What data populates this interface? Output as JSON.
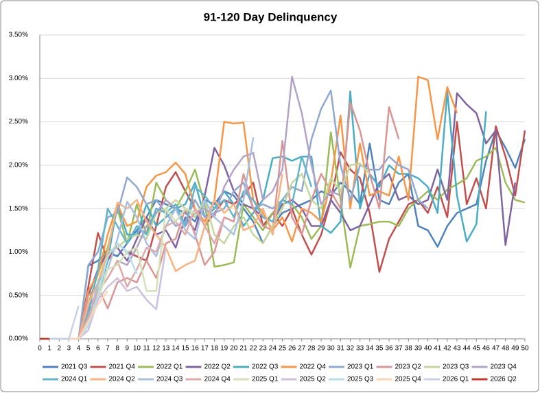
{
  "chart_data": {
    "type": "line",
    "title": "91-120 Day Delinquency",
    "x": [
      0,
      1,
      2,
      3,
      4,
      5,
      6,
      7,
      8,
      9,
      10,
      11,
      12,
      13,
      14,
      15,
      16,
      17,
      18,
      19,
      20,
      21,
      22,
      23,
      24,
      25,
      26,
      27,
      28,
      29,
      30,
      31,
      32,
      33,
      34,
      35,
      36,
      37,
      38,
      39,
      40,
      41,
      42,
      43,
      44,
      45,
      46,
      47,
      48,
      49,
      50
    ],
    "xlim": [
      0,
      50
    ],
    "xticks": [
      0,
      1,
      2,
      3,
      4,
      5,
      6,
      7,
      8,
      9,
      10,
      11,
      12,
      13,
      14,
      15,
      16,
      17,
      18,
      19,
      20,
      21,
      22,
      23,
      24,
      25,
      26,
      27,
      28,
      29,
      30,
      31,
      32,
      33,
      34,
      35,
      36,
      37,
      38,
      39,
      40,
      41,
      42,
      43,
      44,
      45,
      46,
      47,
      48,
      49,
      50
    ],
    "ylim": [
      0,
      3.5
    ],
    "yticks": [
      {
        "value": 0,
        "label": "0.00%"
      },
      {
        "value": 0.5,
        "label": "0.50%"
      },
      {
        "value": 1,
        "label": "1.00%"
      },
      {
        "value": 1.5,
        "label": "1.50%"
      },
      {
        "value": 2,
        "label": "2.00%"
      },
      {
        "value": 2.5,
        "label": "2.50%"
      },
      {
        "value": 3,
        "label": "3.00%"
      },
      {
        "value": 3.5,
        "label": "3.50%"
      }
    ],
    "grid": true,
    "legend": "bottom",
    "series": [
      {
        "name": "2021 Q3",
        "color": "#4f81bd",
        "values": [
          0,
          0,
          0,
          0,
          0,
          0.84,
          0.9,
          1.0,
          0.95,
          1.1,
          1.25,
          1.4,
          1.6,
          1.55,
          1.5,
          1.45,
          1.35,
          1.6,
          1.55,
          1.7,
          1.65,
          1.5,
          1.35,
          1.1,
          1.3,
          1.45,
          1.5,
          1.55,
          1.6,
          1.7,
          1.65,
          1.8,
          1.7,
          1.55,
          2.25,
          1.6,
          1.55,
          1.8,
          1.9,
          1.3,
          1.25,
          1.06,
          1.3,
          1.45,
          1.5,
          1.55,
          2.05,
          2.4,
          2.2,
          1.97,
          2.3
        ]
      },
      {
        "name": "2021 Q4",
        "color": "#c0504d",
        "values": [
          0,
          0,
          0,
          0,
          0,
          0.6,
          1.22,
          0.9,
          1.1,
          1.0,
          0.95,
          0.9,
          1.3,
          1.75,
          1.92,
          1.7,
          1.5,
          1.3,
          1.45,
          1.6,
          1.55,
          1.65,
          1.8,
          1.3,
          1.45,
          1.3,
          1.5,
          1.2,
          0.97,
          1.2,
          1.6,
          2.15,
          1.95,
          1.85,
          1.45,
          0.77,
          1.15,
          1.35,
          1.55,
          1.6,
          1.45,
          1.75,
          1.4,
          2.5,
          1.55,
          1.85,
          1.5,
          2.45,
          2.1,
          1.65,
          2.4
        ]
      },
      {
        "name": "2022 Q1",
        "color": "#9bbb59",
        "values": [
          0,
          0,
          0,
          0,
          0,
          0.4,
          0.75,
          1.05,
          1.5,
          1.1,
          1.55,
          1.2,
          1.8,
          1.6,
          1.5,
          1.7,
          1.95,
          1.55,
          0.83,
          0.85,
          0.88,
          1.55,
          1.4,
          1.25,
          1.45,
          1.6,
          1.55,
          1.4,
          1.15,
          1.3,
          2.38,
          1.6,
          0.82,
          1.3,
          1.32,
          1.35,
          1.35,
          1.3,
          1.5,
          1.6,
          1.7,
          1.6,
          1.72,
          1.78,
          1.85,
          2.05,
          2.1,
          2.2,
          1.8,
          1.6,
          1.57
        ]
      },
      {
        "name": "2022 Q2",
        "color": "#8064a2",
        "values": [
          0,
          0,
          0,
          0,
          0,
          0.5,
          0.8,
          1.0,
          1.05,
          0.9,
          1.15,
          1.4,
          1.2,
          1.25,
          1.05,
          1.4,
          1.25,
          1.65,
          2.2,
          2.0,
          1.7,
          1.55,
          1.5,
          1.4,
          1.35,
          1.55,
          1.6,
          1.5,
          1.3,
          1.3,
          1.6,
          1.45,
          1.25,
          1.3,
          1.55,
          1.8,
          1.9,
          1.6,
          1.65,
          1.55,
          1.6,
          1.95,
          1.6,
          2.83,
          2.7,
          2.6,
          2.25,
          2.4,
          1.08,
          1.8,
          null
        ]
      },
      {
        "name": "2022 Q3",
        "color": "#4bacc6",
        "values": [
          0,
          0,
          0,
          0,
          0,
          0.3,
          0.5,
          0.9,
          1.55,
          1.2,
          1.2,
          1.55,
          1.3,
          1.4,
          1.5,
          1.55,
          1.8,
          1.4,
          1.5,
          1.7,
          1.55,
          1.3,
          1.45,
          1.6,
          2.08,
          2.1,
          2.05,
          2.1,
          2.1,
          1.3,
          1.22,
          1.35,
          2.85,
          1.5,
          1.9,
          1.75,
          2.0,
          1.9,
          1.9,
          1.85,
          1.75,
          1.45,
          2.85,
          1.65,
          1.12,
          1.32,
          2.62,
          null,
          null,
          null,
          null
        ]
      },
      {
        "name": "2022 Q4",
        "color": "#f79646",
        "values": [
          0,
          0,
          0,
          0,
          0,
          0.55,
          0.75,
          1.2,
          1.55,
          1.3,
          1.35,
          1.75,
          1.88,
          1.92,
          2.03,
          1.9,
          1.5,
          1.35,
          1.6,
          2.5,
          2.48,
          2.49,
          1.6,
          1.45,
          1.25,
          1.4,
          1.12,
          1.5,
          1.45,
          1.35,
          1.8,
          2.57,
          1.5,
          2.25,
          1.65,
          1.7,
          1.65,
          2.1,
          1.6,
          3.02,
          2.98,
          2.3,
          2.9,
          2.6,
          null,
          null,
          null,
          null,
          null,
          null,
          null
        ]
      },
      {
        "name": "2023 Q1",
        "color": "#8fa8d2",
        "values": [
          0,
          0,
          0,
          0,
          0,
          0.85,
          1.0,
          1.4,
          1.45,
          1.86,
          1.75,
          1.55,
          1.6,
          1.45,
          1.3,
          1.35,
          1.6,
          1.4,
          1.45,
          1.5,
          1.7,
          1.8,
          1.5,
          1.55,
          1.5,
          1.6,
          1.75,
          1.7,
          2.3,
          2.65,
          2.86,
          2.0,
          1.6,
          2.0,
          1.95,
          1.95,
          2.1,
          2.0,
          1.95,
          1.6,
          1.5,
          null,
          null,
          null,
          null,
          null,
          null,
          null,
          null,
          null,
          null
        ]
      },
      {
        "name": "2023 Q2",
        "color": "#d99694",
        "values": [
          0,
          0,
          0,
          0,
          0,
          0.5,
          0.6,
          0.35,
          0.65,
          0.7,
          0.65,
          0.9,
          0.7,
          1.1,
          1.15,
          1.5,
          1.2,
          0.85,
          1.0,
          1.4,
          1.35,
          1.9,
          1.5,
          1.3,
          1.25,
          2.28,
          1.4,
          1.2,
          1.6,
          1.9,
          1.7,
          1.5,
          2.72,
          2.4,
          1.9,
          1.5,
          2.67,
          2.3,
          null,
          null,
          null,
          null,
          null,
          null,
          null,
          null,
          null,
          null,
          null,
          null,
          null
        ]
      },
      {
        "name": "2023 Q3",
        "color": "#c3d69b",
        "values": [
          0,
          0,
          0,
          0,
          0,
          0.2,
          0.6,
          1.0,
          1.05,
          1.15,
          1.2,
          1.15,
          1.45,
          1.5,
          1.6,
          1.5,
          1.4,
          1.6,
          1.2,
          1.1,
          1.3,
          1.4,
          1.2,
          1.1,
          1.3,
          1.5,
          1.8,
          1.9,
          1.6,
          1.5,
          1.85,
          1.7,
          2.0,
          2.02,
          1.9,
          null,
          null,
          null,
          null,
          null,
          null,
          null,
          null,
          null,
          null,
          null,
          null,
          null,
          null,
          null,
          null
        ]
      },
      {
        "name": "2023 Q4",
        "color": "#b3a2c7",
        "values": [
          0,
          0,
          0,
          0,
          0,
          0.35,
          0.55,
          0.7,
          0.9,
          0.85,
          1.05,
          1.3,
          1.45,
          1.6,
          1.5,
          1.3,
          1.45,
          1.5,
          1.4,
          1.75,
          1.95,
          2.1,
          2.14,
          1.6,
          1.7,
          1.95,
          3.02,
          2.6,
          2.0,
          1.55,
          1.7,
          1.65,
          null,
          null,
          null,
          null,
          null,
          null,
          null,
          null,
          null,
          null,
          null,
          null,
          null,
          null,
          null,
          null,
          null,
          null,
          null
        ]
      },
      {
        "name": "2024 Q1",
        "color": "#62b4cc",
        "values": [
          0,
          0,
          0,
          0,
          0,
          0.3,
          0.8,
          1.5,
          1.3,
          1.1,
          1.3,
          1.2,
          1.5,
          1.45,
          1.55,
          1.3,
          1.75,
          1.65,
          1.5,
          1.6,
          1.4,
          1.7,
          1.6,
          1.4,
          1.35,
          1.6,
          1.55,
          2.1,
          1.75,
          null,
          null,
          null,
          null,
          null,
          null,
          null,
          null,
          null,
          null,
          null,
          null,
          null,
          null,
          null,
          null,
          null,
          null,
          null,
          null,
          null,
          null
        ]
      },
      {
        "name": "2024 Q2",
        "color": "#f9b27f",
        "values": [
          0,
          0,
          0,
          0,
          0,
          0.4,
          0.65,
          1.0,
          1.57,
          1.5,
          1.6,
          1.35,
          1.2,
          1.05,
          0.78,
          0.85,
          0.9,
          1.3,
          1.6,
          1.45,
          1.55,
          1.25,
          1.3,
          1.5,
          1.2,
          1.9,
          null,
          null,
          null,
          null,
          null,
          null,
          null,
          null,
          null,
          null,
          null,
          null,
          null,
          null,
          null,
          null,
          null,
          null,
          null,
          null,
          null,
          null,
          null,
          null,
          null
        ]
      },
      {
        "name": "2024 Q3",
        "color": "#a9bfe0",
        "values": [
          0,
          0,
          0,
          0,
          0,
          0.2,
          0.65,
          0.8,
          1.15,
          1.58,
          1.4,
          1.1,
          0.95,
          1.3,
          1.5,
          1.25,
          1.15,
          1.6,
          1.4,
          1.3,
          1.2,
          1.6,
          2.32,
          null,
          null,
          null,
          null,
          null,
          null,
          null,
          null,
          null,
          null,
          null,
          null,
          null,
          null,
          null,
          null,
          null,
          null,
          null,
          null,
          null,
          null,
          null,
          null,
          null,
          null,
          null,
          null
        ]
      },
      {
        "name": "2024 Q4",
        "color": "#e0a9a8",
        "values": [
          0,
          0,
          0,
          0,
          0,
          0.25,
          0.55,
          0.7,
          0.9,
          0.6,
          0.8,
          1.05,
          1.0,
          1.3,
          1.35,
          1.2,
          1.5,
          1.3,
          1.1,
          1.4,
          null,
          null,
          null,
          null,
          null,
          null,
          null,
          null,
          null,
          null,
          null,
          null,
          null,
          null,
          null,
          null,
          null,
          null,
          null,
          null,
          null,
          null,
          null,
          null,
          null,
          null,
          null,
          null,
          null,
          null,
          null
        ]
      },
      {
        "name": "2025 Q1",
        "color": "#d3e2b6",
        "values": [
          0,
          0,
          0,
          0,
          0,
          0.15,
          0.45,
          0.8,
          0.85,
          1.0,
          1.05,
          0.55,
          0.55,
          1.5,
          1.35,
          1.5,
          1.45,
          null,
          null,
          null,
          null,
          null,
          null,
          null,
          null,
          null,
          null,
          null,
          null,
          null,
          null,
          null,
          null,
          null,
          null,
          null,
          null,
          null,
          null,
          null,
          null,
          null,
          null,
          null,
          null,
          null,
          null,
          null,
          null,
          null,
          null
        ]
      },
      {
        "name": "2025 Q2",
        "color": "#ccc0dc",
        "values": [
          0,
          0,
          0,
          0,
          0,
          0.1,
          0.45,
          0.6,
          0.7,
          0.55,
          0.6,
          0.45,
          0.34,
          1.05,
          null,
          null,
          null,
          null,
          null,
          null,
          null,
          null,
          null,
          null,
          null,
          null,
          null,
          null,
          null,
          null,
          null,
          null,
          null,
          null,
          null,
          null,
          null,
          null,
          null,
          null,
          null,
          null,
          null,
          null,
          null,
          null,
          null,
          null,
          null,
          null,
          null
        ]
      },
      {
        "name": "2025 Q3",
        "color": "#b7dee8",
        "values": [
          0,
          0,
          0,
          0,
          0,
          0.15,
          0.5,
          0.95,
          1.1,
          1.0,
          0.75,
          null,
          null,
          null,
          null,
          null,
          null,
          null,
          null,
          null,
          null,
          null,
          null,
          null,
          null,
          null,
          null,
          null,
          null,
          null,
          null,
          null,
          null,
          null,
          null,
          null,
          null,
          null,
          null,
          null,
          null,
          null,
          null,
          null,
          null,
          null,
          null,
          null,
          null,
          null,
          null
        ]
      },
      {
        "name": "2025 Q4",
        "color": "#fcd5b4",
        "values": [
          0,
          0,
          0,
          0,
          0,
          0.2,
          0.4,
          0.55,
          null,
          null,
          null,
          null,
          null,
          null,
          null,
          null,
          null,
          null,
          null,
          null,
          null,
          null,
          null,
          null,
          null,
          null,
          null,
          null,
          null,
          null,
          null,
          null,
          null,
          null,
          null,
          null,
          null,
          null,
          null,
          null,
          null,
          null,
          null,
          null,
          null,
          null,
          null,
          null,
          null,
          null,
          null
        ]
      },
      {
        "name": "2026 Q1",
        "color": "#c5d1e8",
        "values": [
          0,
          0,
          0,
          0,
          0.38,
          null,
          null,
          null,
          null,
          null,
          null,
          null,
          null,
          null,
          null,
          null,
          null,
          null,
          null,
          null,
          null,
          null,
          null,
          null,
          null,
          null,
          null,
          null,
          null,
          null,
          null,
          null,
          null,
          null,
          null,
          null,
          null,
          null,
          null,
          null,
          null,
          null,
          null,
          null,
          null,
          null,
          null,
          null,
          null,
          null,
          null
        ]
      },
      {
        "name": "2026 Q2",
        "color": "#c0392b",
        "values": [
          0,
          0,
          null,
          null,
          null,
          null,
          null,
          null,
          null,
          null,
          null,
          null,
          null,
          null,
          null,
          null,
          null,
          null,
          null,
          null,
          null,
          null,
          null,
          null,
          null,
          null,
          null,
          null,
          null,
          null,
          null,
          null,
          null,
          null,
          null,
          null,
          null,
          null,
          null,
          null,
          null,
          null,
          null,
          null,
          null,
          null,
          null,
          null,
          null,
          null,
          null
        ]
      }
    ]
  }
}
